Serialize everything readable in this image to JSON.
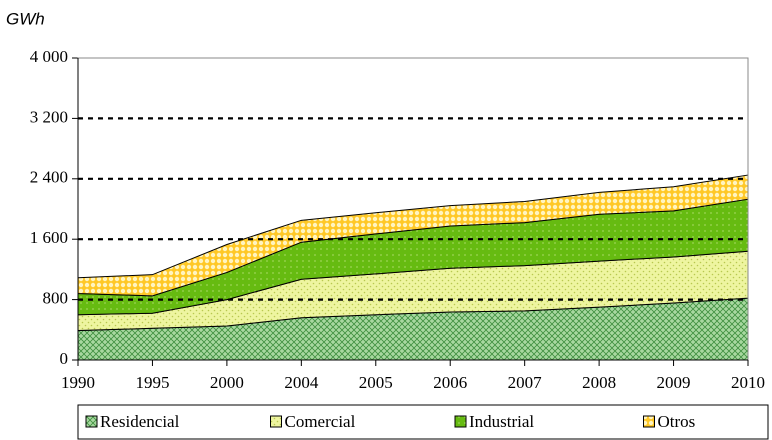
{
  "chart_data": {
    "type": "stacked_area",
    "ylabel": "GWh",
    "categories": [
      "1990",
      "1995",
      "2000",
      "2004",
      "2005",
      "2006",
      "2007",
      "2008",
      "2009",
      "2010"
    ],
    "series": [
      {
        "name": "Residencial",
        "color": "#a8d8a0",
        "values": [
          390,
          420,
          450,
          560,
          600,
          635,
          650,
          700,
          755,
          820
        ]
      },
      {
        "name": "Comercial",
        "color": "#eef5a0",
        "values": [
          210,
          200,
          350,
          510,
          540,
          580,
          600,
          610,
          610,
          620
        ]
      },
      {
        "name": "Industrial",
        "color": "#66bb11",
        "values": [
          280,
          230,
          360,
          490,
          530,
          560,
          570,
          620,
          610,
          690
        ]
      },
      {
        "name": "Otros",
        "color": "#ffc826",
        "values": [
          210,
          280,
          370,
          290,
          280,
          270,
          280,
          290,
          320,
          320
        ]
      }
    ],
    "ylim": [
      0,
      4000
    ],
    "yticks": [
      0,
      800,
      {
        "value": 1600,
        "label": "1 600"
      },
      {
        "value": 2400,
        "label": "2 400"
      },
      {
        "value": 3200,
        "label": "3 200"
      },
      {
        "value": 4000,
        "label": "4 000"
      }
    ],
    "grid": true,
    "legend": "bottom"
  }
}
